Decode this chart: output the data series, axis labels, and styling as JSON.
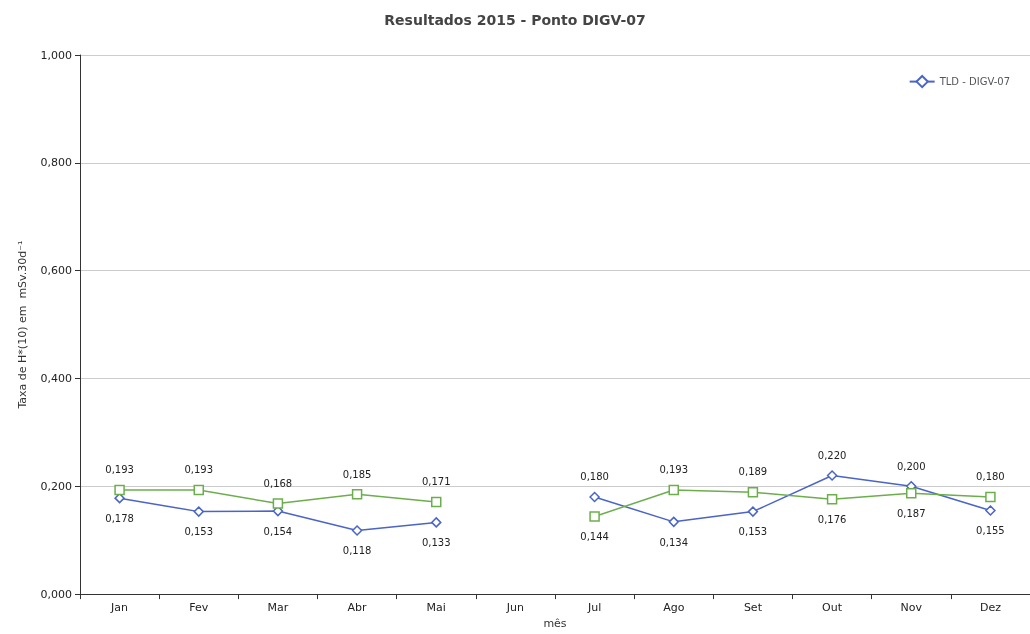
{
  "chart_data": {
    "type": "line",
    "title": "Resultados 2015 - Ponto DIGV-07",
    "xlabel": "mês",
    "ylabel": "Taxa de H*(10) em  mSv.30d⁻¹",
    "categories": [
      "Jan",
      "Fev",
      "Mar",
      "Abr",
      "Mai",
      "Jun",
      "Jul",
      "Ago",
      "Set",
      "Out",
      "Nov",
      "Dez"
    ],
    "series": [
      {
        "name": "TLD - DIGV-07",
        "color": "#4a64c8",
        "marker": "diamond",
        "values": [
          0.178,
          0.153,
          0.154,
          0.118,
          0.133,
          null,
          0.18,
          0.134,
          0.153,
          0.22,
          0.2,
          0.155
        ],
        "value_labels": [
          "0,178",
          "0,153",
          "0,154",
          "0,118",
          "0,133",
          null,
          "0,180",
          "0,134",
          "0,153",
          "0,220",
          "0,200",
          "0,155"
        ]
      },
      {
        "color": "#6cae4c",
        "marker": "square",
        "values": [
          0.193,
          0.193,
          0.168,
          0.185,
          0.171,
          null,
          0.144,
          0.193,
          0.189,
          0.176,
          0.187,
          0.18
        ],
        "value_labels": [
          "0,193",
          "0,193",
          "0,168",
          "0,185",
          "0,171",
          null,
          "0,144",
          "0,193",
          "0,189",
          "0,176",
          "0,187",
          "0,180"
        ]
      }
    ],
    "ylim": [
      0,
      1
    ],
    "yticks": [
      {
        "value": 0,
        "label": "0,000"
      },
      {
        "value": 0.2,
        "label": "0,200"
      },
      {
        "value": 0.4,
        "label": "0,400"
      },
      {
        "value": 0.6,
        "label": "0,600"
      },
      {
        "value": 0.8,
        "label": "0,800"
      },
      {
        "value": 1,
        "label": "1,000"
      }
    ],
    "grid": "y",
    "legend": "top right",
    "line_style": "solid"
  }
}
